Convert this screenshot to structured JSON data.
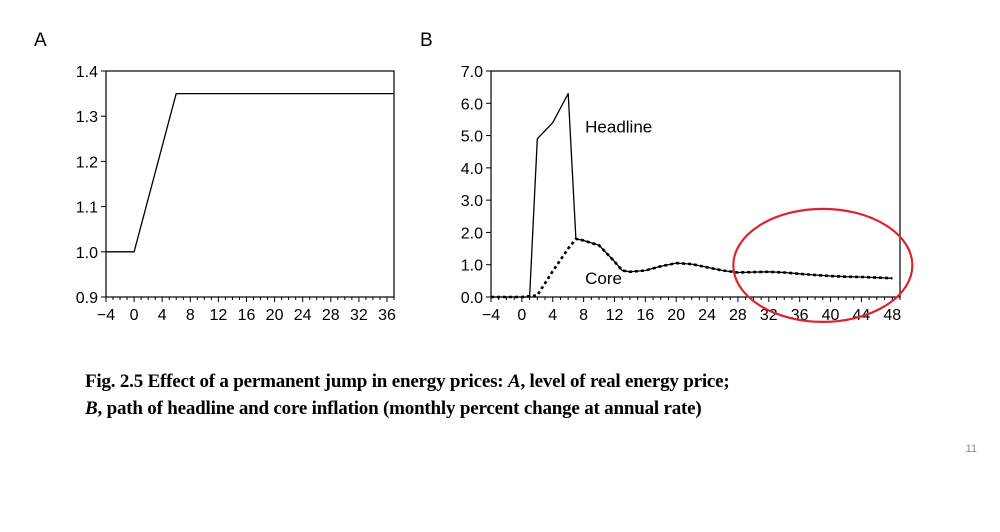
{
  "chart_data": [
    {
      "type": "line",
      "panel_label": "A",
      "xlim": [
        -4,
        37
      ],
      "ylim": [
        0.9,
        1.4
      ],
      "xticks": [
        -4,
        0,
        4,
        8,
        12,
        16,
        20,
        24,
        28,
        32,
        36
      ],
      "yticks": [
        0.9,
        1.0,
        1.1,
        1.2,
        1.3,
        1.4
      ],
      "ytick_labels": [
        "0.9",
        "1.0",
        "1.1",
        "1.2",
        "1.3",
        "1.4"
      ],
      "grid": false,
      "series": [
        {
          "x": [
            -4,
            0,
            6,
            37
          ],
          "y": [
            1.0,
            1.0,
            1.35,
            1.35
          ],
          "style": "solid"
        }
      ]
    },
    {
      "type": "line",
      "panel_label": "B",
      "xlim": [
        -4,
        49
      ],
      "ylim": [
        0.0,
        7.0
      ],
      "xticks": [
        -4,
        0,
        4,
        8,
        12,
        16,
        20,
        24,
        28,
        32,
        36,
        40,
        44,
        48
      ],
      "yticks": [
        0,
        1,
        2,
        3,
        4,
        5,
        6,
        7
      ],
      "ytick_labels": [
        "0.0",
        "1.0",
        "2.0",
        "3.0",
        "4.0",
        "5.0",
        "6.0",
        "7.0"
      ],
      "grid": false,
      "series": [
        {
          "name": "Headline",
          "style": "solid",
          "x": [
            -4,
            0,
            1,
            2,
            4,
            6,
            7,
            8,
            10,
            12,
            13,
            14,
            16,
            18,
            20,
            22,
            24,
            26,
            28,
            30,
            32,
            34,
            36,
            38,
            40,
            42,
            44,
            46,
            48
          ],
          "y": [
            0,
            0,
            0,
            4.9,
            5.4,
            6.3,
            1.8,
            1.75,
            1.6,
            1.1,
            0.82,
            0.78,
            0.82,
            0.95,
            1.05,
            1.02,
            0.92,
            0.82,
            0.76,
            0.77,
            0.78,
            0.76,
            0.72,
            0.68,
            0.65,
            0.63,
            0.62,
            0.6,
            0.58
          ]
        },
        {
          "name": "Core",
          "style": "dotted",
          "x": [
            -4,
            0,
            2,
            4,
            6,
            7,
            8,
            10,
            12,
            13,
            14,
            16,
            18,
            20,
            22,
            24,
            26,
            28,
            30,
            32,
            34,
            36,
            38,
            40,
            42,
            44,
            46,
            48
          ],
          "y": [
            0,
            0,
            0.05,
            0.8,
            1.5,
            1.8,
            1.75,
            1.6,
            1.1,
            0.82,
            0.78,
            0.82,
            0.95,
            1.05,
            1.02,
            0.92,
            0.82,
            0.76,
            0.77,
            0.78,
            0.76,
            0.72,
            0.68,
            0.65,
            0.63,
            0.62,
            0.6,
            0.58
          ]
        }
      ],
      "annotations": [
        {
          "text": "Headline",
          "x": 8.2,
          "y": 5.1
        },
        {
          "text": "Core",
          "x": 8.2,
          "y": 0.4
        }
      ],
      "highlight_ellipse": {
        "x_center": 39,
        "y_center": 0.98,
        "x_radius": 11.6,
        "y_radius": 1.75,
        "color": "#d9262c"
      }
    }
  ],
  "caption": {
    "line1_prefix": "Fig. 2.5   Effect of a permanent jump in energy prices: ",
    "line1_a": "A",
    "line1_rest": ", level of real energy price;",
    "line2_b": "B",
    "line2_rest": ", path of headline and core inflation (monthly percent change at annual rate)"
  },
  "page_number": "11"
}
